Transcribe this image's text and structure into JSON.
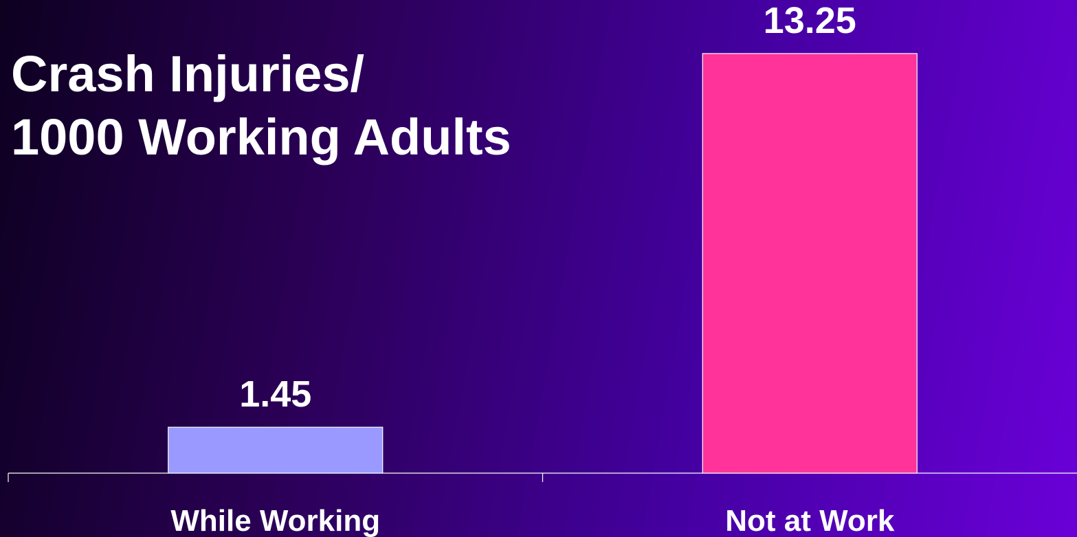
{
  "chart_data": {
    "type": "bar",
    "title_lines": [
      "Crash Injuries/",
      "1000 Working Adults"
    ],
    "categories": [
      "While Working",
      "Not at Work"
    ],
    "values": [
      1.45,
      13.25
    ],
    "data_labels": [
      "1.45",
      "13.25"
    ],
    "colors": [
      "#9999ff",
      "#ff3399"
    ],
    "ylim": [
      0,
      14.5
    ],
    "grid": false,
    "legend": "none",
    "xlabel": "",
    "ylabel": ""
  }
}
